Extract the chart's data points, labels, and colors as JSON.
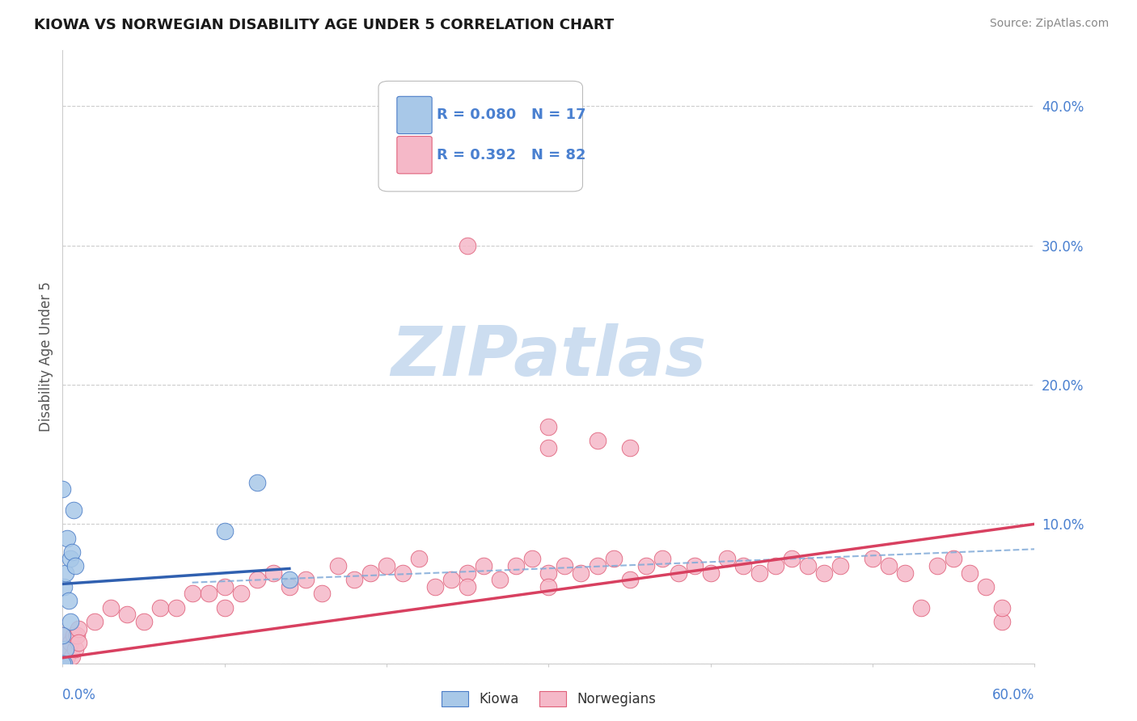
{
  "title": "KIOWA VS NORWEGIAN DISABILITY AGE UNDER 5 CORRELATION CHART",
  "source_text": "Source: ZipAtlas.com",
  "ylabel": "Disability Age Under 5",
  "xlim": [
    0.0,
    0.6
  ],
  "ylim": [
    0.0,
    0.44
  ],
  "ytick_vals": [
    0.0,
    0.1,
    0.2,
    0.3,
    0.4
  ],
  "ytick_labels": [
    "",
    "10.0%",
    "20.0%",
    "30.0%",
    "40.0%"
  ],
  "legend_r_kiowa": "R = 0.080",
  "legend_n_kiowa": "N = 17",
  "legend_r_norw": "R = 0.392",
  "legend_n_norw": "N = 82",
  "kiowa_fill": "#a8c8e8",
  "kiowa_edge": "#4a7cc7",
  "norw_fill": "#f5b8c8",
  "norw_edge": "#e0607a",
  "blue_line": "#3060b0",
  "pink_line": "#d84060",
  "dash_line": "#80aad8",
  "text_blue": "#4a80d0",
  "watermark_color": "#ccddf0",
  "grid_color": "#cccccc",
  "kiowa_x": [
    0.001,
    0.001,
    0.002,
    0.002,
    0.003,
    0.004,
    0.005,
    0.005,
    0.006,
    0.007,
    0.008,
    0.0,
    0.0,
    0.0,
    0.1,
    0.12,
    0.14
  ],
  "kiowa_y": [
    0.0,
    0.055,
    0.01,
    0.065,
    0.09,
    0.045,
    0.03,
    0.075,
    0.08,
    0.11,
    0.07,
    0.0,
    0.02,
    0.125,
    0.095,
    0.13,
    0.06
  ],
  "norw_x": [
    0.0,
    0.0,
    0.0,
    0.0,
    0.0,
    0.001,
    0.001,
    0.002,
    0.003,
    0.004,
    0.005,
    0.006,
    0.007,
    0.008,
    0.009,
    0.01,
    0.01,
    0.02,
    0.03,
    0.04,
    0.05,
    0.06,
    0.07,
    0.08,
    0.09,
    0.1,
    0.1,
    0.11,
    0.12,
    0.13,
    0.14,
    0.15,
    0.16,
    0.17,
    0.18,
    0.19,
    0.2,
    0.21,
    0.22,
    0.23,
    0.24,
    0.25,
    0.25,
    0.26,
    0.27,
    0.28,
    0.29,
    0.3,
    0.3,
    0.31,
    0.32,
    0.33,
    0.34,
    0.35,
    0.36,
    0.37,
    0.38,
    0.39,
    0.4,
    0.41,
    0.42,
    0.43,
    0.44,
    0.45,
    0.46,
    0.47,
    0.48,
    0.5,
    0.51,
    0.52,
    0.54,
    0.55,
    0.56,
    0.57,
    0.58,
    0.25,
    0.3,
    0.33,
    0.35,
    0.58,
    0.53,
    0.3
  ],
  "norw_y": [
    0.0,
    0.005,
    0.01,
    0.015,
    0.02,
    0.0,
    0.01,
    0.01,
    0.005,
    0.01,
    0.015,
    0.005,
    0.02,
    0.01,
    0.02,
    0.025,
    0.015,
    0.03,
    0.04,
    0.035,
    0.03,
    0.04,
    0.04,
    0.05,
    0.05,
    0.04,
    0.055,
    0.05,
    0.06,
    0.065,
    0.055,
    0.06,
    0.05,
    0.07,
    0.06,
    0.065,
    0.07,
    0.065,
    0.075,
    0.055,
    0.06,
    0.065,
    0.055,
    0.07,
    0.06,
    0.07,
    0.075,
    0.065,
    0.055,
    0.07,
    0.065,
    0.07,
    0.075,
    0.06,
    0.07,
    0.075,
    0.065,
    0.07,
    0.065,
    0.075,
    0.07,
    0.065,
    0.07,
    0.075,
    0.07,
    0.065,
    0.07,
    0.075,
    0.07,
    0.065,
    0.07,
    0.075,
    0.065,
    0.055,
    0.03,
    0.3,
    0.17,
    0.16,
    0.155,
    0.04,
    0.04,
    0.155
  ]
}
